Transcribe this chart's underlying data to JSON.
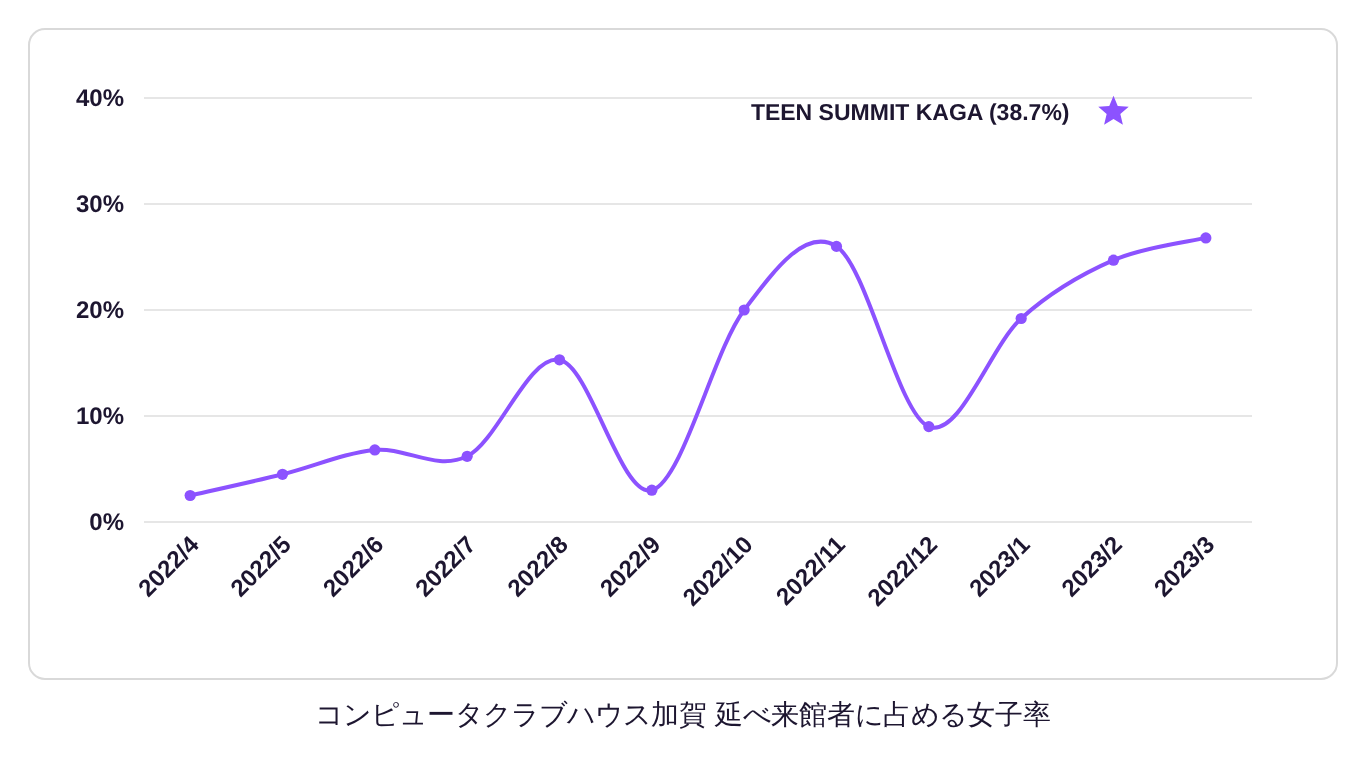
{
  "chart_data": {
    "type": "line",
    "title": "コンピュータクラブハウス加賀 延べ来館者に占める女子率",
    "categories": [
      "2022/4",
      "2022/5",
      "2022/6",
      "2022/7",
      "2022/8",
      "2022/9",
      "2022/10",
      "2022/11",
      "2022/12",
      "2023/1",
      "2023/2",
      "2023/3"
    ],
    "series": [
      {
        "color": "#8c52ff",
        "marker": "circle",
        "values": [
          2.5,
          4.5,
          6.8,
          6.2,
          15.3,
          3.0,
          20.0,
          26.0,
          9.0,
          19.2,
          24.7,
          26.8
        ]
      },
      {
        "type": "scatter",
        "name": "TEEN SUMMIT KAGA (38.7%)",
        "color": "#8c52ff",
        "marker": "star",
        "x": [
          "2023/2"
        ],
        "values": [
          38.7
        ]
      }
    ],
    "ylim": [
      0,
      40
    ],
    "yticks": [
      {
        "value": 0,
        "label": "0%"
      },
      {
        "value": 10,
        "label": "10%"
      },
      {
        "value": 20,
        "label": "20%"
      },
      {
        "value": 30,
        "label": "30%"
      },
      {
        "value": 40,
        "label": "40%"
      }
    ],
    "grid": "y"
  }
}
